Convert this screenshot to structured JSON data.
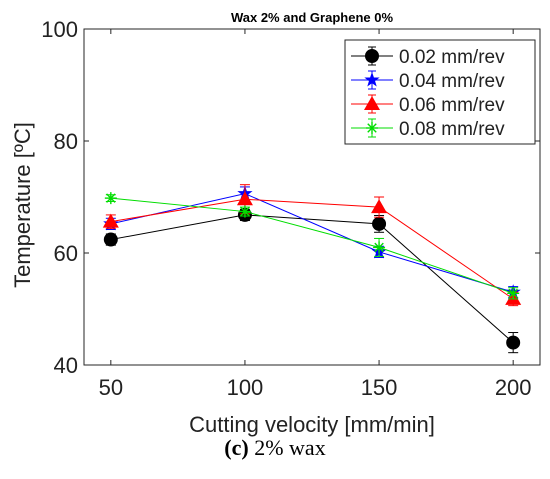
{
  "chart_data": {
    "type": "line",
    "title": "Wax 2% and Graphene 0%",
    "xlabel": "Cutting velocity [mm/min]",
    "ylabel": "Temperature [ºC]",
    "x": [
      50,
      100,
      150,
      200
    ],
    "x_ticks": [
      "50",
      "100",
      "150",
      "200"
    ],
    "xlim": [
      40,
      210
    ],
    "ylim": [
      40,
      100
    ],
    "y_ticks": [
      "40",
      "60",
      "80",
      "100"
    ],
    "grid": false,
    "legend_position": "top-right",
    "series": [
      {
        "name": "0.02 mm/rev",
        "color": "#000000",
        "marker": "circle",
        "values": [
          62.4,
          66.8,
          65.2,
          44.0
        ],
        "errors": [
          1.0,
          1.0,
          1.5,
          1.8
        ]
      },
      {
        "name": "0.04 mm/rev",
        "color": "#0000ff",
        "marker": "star",
        "values": [
          65.2,
          70.6,
          60.2,
          53.0
        ],
        "errors": [
          1.0,
          1.2,
          1.0,
          1.0
        ]
      },
      {
        "name": "0.06 mm/rev",
        "color": "#ff0000",
        "marker": "triangle",
        "values": [
          65.6,
          69.6,
          68.2,
          51.8
        ],
        "errors": [
          1.2,
          2.6,
          1.8,
          1.2
        ]
      },
      {
        "name": "0.08 mm/rev",
        "color": "#00dd00",
        "marker": "asterisk",
        "values": [
          69.8,
          67.4,
          61.0,
          52.8
        ],
        "errors": [
          0.6,
          0.8,
          1.6,
          1.0
        ]
      }
    ]
  },
  "caption": {
    "label": "(c)",
    "text": "2% wax"
  }
}
